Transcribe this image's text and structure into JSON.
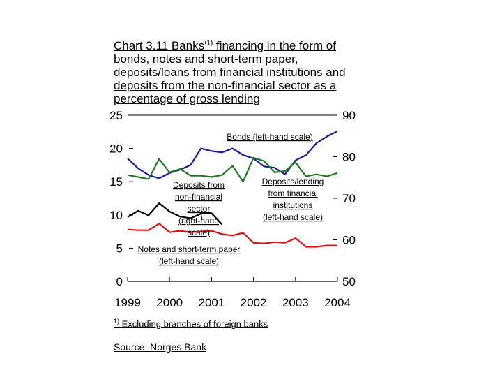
{
  "title": {
    "prefix": "Chart 3.11 Banks'",
    "superscript": "1)",
    "suffix": " financing in the form of bonds, notes and short-term paper, deposits/loans from financial institutions and deposits from the non-financial sector as a percentage of gross lending"
  },
  "footnote": {
    "marker": "1)",
    "text": "Excluding branches of  foreign banks"
  },
  "source": "Source: Norges Bank",
  "chart_data": {
    "type": "line",
    "x_ticks": [
      "1999",
      "2000",
      "2001",
      "2002",
      "2003",
      "2004"
    ],
    "x_range": [
      1999,
      2004
    ],
    "left_axis": {
      "ticks": [
        0,
        5,
        10,
        15,
        20,
        25
      ],
      "range": [
        0,
        25
      ]
    },
    "right_axis": {
      "ticks": [
        50,
        60,
        70,
        80,
        90
      ],
      "range": [
        50,
        90
      ]
    },
    "series": [
      {
        "name": "Bonds (left-hand scale)",
        "axis": "left",
        "color": "#1a1aa6",
        "points": [
          [
            1999.0,
            18.5
          ],
          [
            1999.25,
            17
          ],
          [
            1999.5,
            16
          ],
          [
            1999.75,
            15.5
          ],
          [
            2000.0,
            16.3
          ],
          [
            2000.25,
            16.8
          ],
          [
            2000.5,
            17.5
          ],
          [
            2000.75,
            20.0
          ],
          [
            2001.0,
            19.6
          ],
          [
            2001.25,
            19.4
          ],
          [
            2001.5,
            20.0
          ],
          [
            2001.75,
            19.0
          ],
          [
            2002.0,
            18.5
          ],
          [
            2002.25,
            17.3
          ],
          [
            2002.5,
            17.1
          ],
          [
            2002.75,
            16.1
          ],
          [
            2003.0,
            18.2
          ],
          [
            2003.25,
            19.0
          ],
          [
            2003.5,
            20.8
          ],
          [
            2003.75,
            21.8
          ],
          [
            2004.0,
            22.6
          ]
        ]
      },
      {
        "name": "Deposits/lending from financial institutions (left-hand scale)",
        "axis": "left",
        "color": "#1f7a1f",
        "points": [
          [
            1999.0,
            16.0
          ],
          [
            1999.25,
            15.7
          ],
          [
            1999.5,
            15.4
          ],
          [
            1999.75,
            18.4
          ],
          [
            2000.0,
            16.4
          ],
          [
            2000.25,
            16.9
          ],
          [
            2000.5,
            15.9
          ],
          [
            2000.75,
            15.9
          ],
          [
            2001.0,
            15.7
          ],
          [
            2001.25,
            16.0
          ],
          [
            2001.5,
            17.4
          ],
          [
            2001.75,
            15.0
          ],
          [
            2002.0,
            18.6
          ],
          [
            2002.25,
            18.1
          ],
          [
            2002.5,
            16.4
          ],
          [
            2002.75,
            16.6
          ],
          [
            2003.0,
            17.9
          ],
          [
            2003.25,
            15.8
          ],
          [
            2003.5,
            16.1
          ],
          [
            2003.75,
            15.8
          ],
          [
            2004.0,
            16.3
          ]
        ]
      },
      {
        "name": "Deposits from non-financial sector (right-hand scale)",
        "axis": "right",
        "color": "#000000",
        "points": [
          [
            1999.0,
            65.5
          ],
          [
            1999.25,
            67.0
          ],
          [
            1999.5,
            65.9
          ],
          [
            1999.75,
            68.8
          ],
          [
            2000.0,
            66.8
          ],
          [
            2000.25,
            65.6
          ],
          [
            2000.5,
            65.2
          ],
          [
            2000.75,
            66.3
          ],
          [
            2001.0,
            66.4
          ],
          [
            2001.25,
            63.7
          ]
        ]
      },
      {
        "name": "Notes and short-term paper (left-hand scale)",
        "axis": "left",
        "color": "#dd1111",
        "points": [
          [
            1999.0,
            7.8
          ],
          [
            1999.25,
            7.7
          ],
          [
            1999.5,
            7.7
          ],
          [
            1999.75,
            8.7
          ],
          [
            2000.0,
            7.4
          ],
          [
            2000.25,
            7.6
          ],
          [
            2000.5,
            7.4
          ],
          [
            2000.75,
            7.5
          ],
          [
            2001.0,
            7.6
          ],
          [
            2001.25,
            7.1
          ],
          [
            2001.5,
            6.9
          ],
          [
            2001.75,
            7.3
          ],
          [
            2002.0,
            5.8
          ],
          [
            2002.25,
            5.7
          ],
          [
            2002.5,
            5.9
          ],
          [
            2002.75,
            5.8
          ],
          [
            2003.0,
            6.5
          ],
          [
            2003.25,
            5.2
          ],
          [
            2003.5,
            5.2
          ],
          [
            2003.75,
            5.4
          ],
          [
            2004.0,
            5.4
          ]
        ]
      }
    ],
    "annotations": [
      {
        "text": "Bonds (left-hand scale)",
        "anchor": "top"
      },
      {
        "text": "Deposits from non-financial sector (right-hand scale)",
        "anchor": "left-middle"
      },
      {
        "text": "Deposits/lending from financial institutions (left-hand scale)",
        "anchor": "right-middle"
      },
      {
        "text": "Notes and short-term paper (left-hand scale)",
        "anchor": "lower-left"
      }
    ],
    "grid": false
  }
}
